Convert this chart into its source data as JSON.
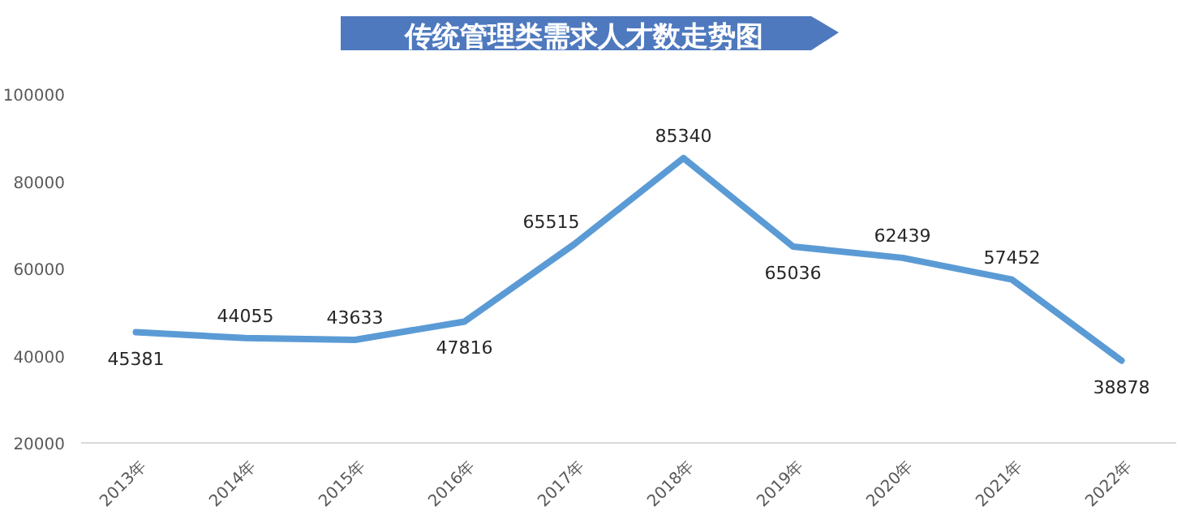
{
  "chart_data": {
    "type": "line",
    "title": "传统管理类需求人才数走势图",
    "categories": [
      "2013年",
      "2014年",
      "2015年",
      "2016年",
      "2017年",
      "2018年",
      "2019年",
      "2020年",
      "2021年",
      "2022年"
    ],
    "values": [
      45381,
      44055,
      43633,
      47816,
      65515,
      85340,
      65036,
      62439,
      57452,
      38878
    ],
    "color": "#5b9bd5",
    "ylim": [
      20000,
      100000
    ],
    "yticks": [
      20000,
      40000,
      60000,
      80000,
      100000
    ],
    "grid": false,
    "data_labels": true,
    "marker": "none"
  }
}
